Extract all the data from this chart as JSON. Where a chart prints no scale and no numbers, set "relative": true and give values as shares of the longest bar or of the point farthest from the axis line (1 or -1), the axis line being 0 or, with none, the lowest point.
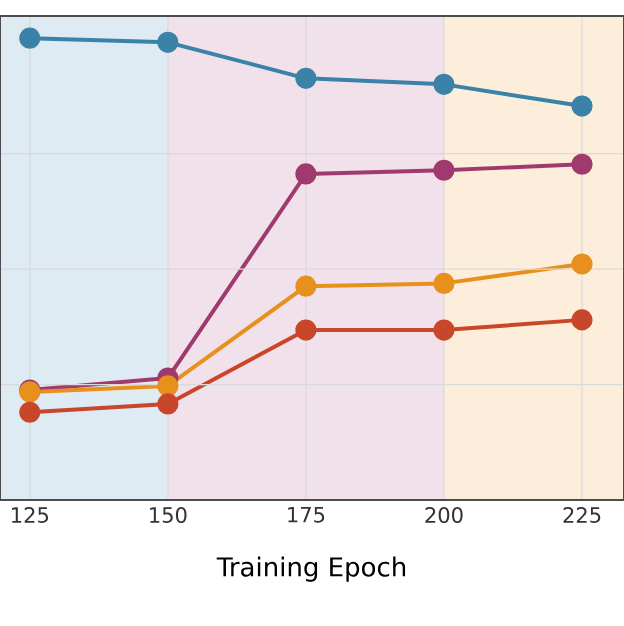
{
  "chart_data": {
    "type": "line",
    "xlabel": "Training Epoch",
    "relative": true,
    "x": [
      125,
      150,
      175,
      200,
      225
    ],
    "xlim": [
      119.6,
      232.6
    ],
    "xticks": [
      125,
      150,
      175,
      200,
      225
    ],
    "grid": true,
    "marker": "circle",
    "line_style": "solid",
    "bands": [
      {
        "axis": "x",
        "from": 119.6,
        "to": 150,
        "color": "#deebf2"
      },
      {
        "axis": "x",
        "from": 150,
        "to": 200,
        "color": "#f0e1ea"
      },
      {
        "axis": "x",
        "from": 200,
        "to": 232.6,
        "color": "#fdeedb"
      }
    ],
    "series": [
      {
        "color": "#3a82a8",
        "values": [
          1.0,
          0.991,
          0.913,
          0.9,
          0.853
        ]
      },
      {
        "color": "#a03a6e",
        "values": [
          0.238,
          0.264,
          0.706,
          0.714,
          0.727
        ]
      },
      {
        "color": "#e8901e",
        "values": [
          0.234,
          0.247,
          0.463,
          0.469,
          0.511
        ]
      },
      {
        "color": "#c8472a",
        "values": [
          0.19,
          0.208,
          0.368,
          0.368,
          0.39
        ]
      }
    ]
  }
}
